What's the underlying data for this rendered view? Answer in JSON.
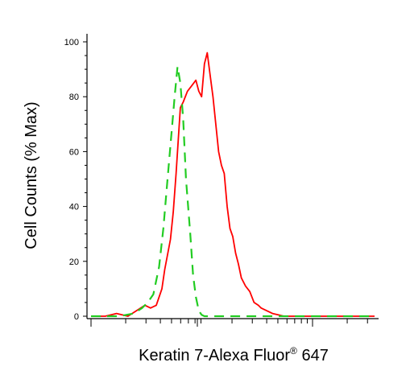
{
  "chart_data": {
    "type": "line",
    "title": "",
    "xlabel": "Keratin 7-Alexa Fluor",
    "xlabel_superscript": "®",
    "xlabel_suffix": " 647",
    "ylabel": "Cell Counts (% Max)",
    "ylim": [
      0,
      100
    ],
    "y_ticks": [
      0,
      20,
      40,
      60,
      80,
      100
    ],
    "x_scale": "log",
    "x_tick_labels_shown": false,
    "grid": false,
    "legend": "none",
    "series": [
      {
        "color": "#ff0000",
        "line_style": "solid",
        "x": [
          0.0,
          0.05,
          0.09,
          0.13,
          0.16,
          0.19,
          0.21,
          0.23,
          0.25,
          0.26,
          0.28,
          0.29,
          0.3,
          0.315,
          0.325,
          0.34,
          0.355,
          0.37,
          0.38,
          0.39,
          0.4,
          0.41,
          0.42,
          0.43,
          0.44,
          0.45,
          0.46,
          0.47,
          0.48,
          0.49,
          0.5,
          0.51,
          0.52,
          0.53,
          0.545,
          0.56,
          0.575,
          0.59,
          0.6,
          0.62,
          0.64,
          0.66,
          0.68,
          0.7,
          0.72,
          0.75,
          0.8,
          0.9,
          1.0
        ],
        "values": [
          0,
          0,
          1,
          0,
          2,
          4,
          3,
          4,
          10,
          17,
          28,
          38,
          52,
          76,
          78,
          82,
          84,
          86,
          82,
          80,
          92,
          96,
          88,
          80,
          70,
          60,
          55,
          52,
          40,
          32,
          29,
          23,
          19,
          14,
          11,
          9,
          5,
          4,
          3,
          2,
          1,
          0.5,
          0,
          0,
          0,
          0,
          0,
          0,
          0
        ]
      },
      {
        "color": "#22cc22",
        "line_style": "dashed",
        "x": [
          0.0,
          0.05,
          0.1,
          0.15,
          0.18,
          0.2,
          0.22,
          0.24,
          0.255,
          0.27,
          0.285,
          0.295,
          0.305,
          0.315,
          0.325,
          0.335,
          0.35,
          0.36,
          0.37,
          0.38,
          0.39,
          0.4,
          0.42,
          0.5,
          0.7,
          1.0
        ],
        "values": [
          0,
          0,
          0,
          1,
          3,
          5,
          8,
          18,
          32,
          50,
          68,
          80,
          91,
          85,
          72,
          50,
          30,
          15,
          7,
          2,
          0.5,
          0,
          0,
          0,
          0,
          0
        ]
      }
    ]
  }
}
